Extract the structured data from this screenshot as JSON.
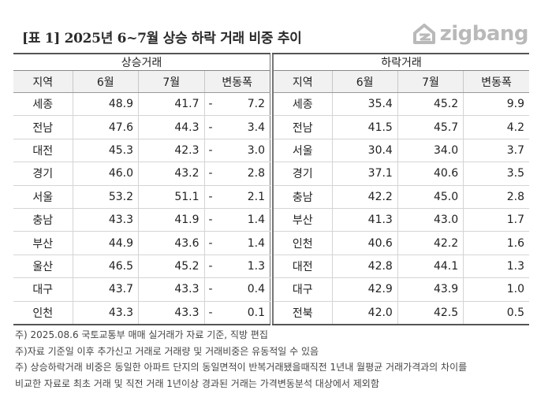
{
  "title": "[표 1] 2025년 6~7월 상승 하락 거래 비중 추이",
  "logo": {
    "text": "zigbang",
    "icon": "zigbang-house-icon",
    "color": "#b9b9b9"
  },
  "columns": {
    "region": "지역",
    "june": "6월",
    "july": "7월",
    "change": "변동폭"
  },
  "rising": {
    "label": "상승거래",
    "rows": [
      {
        "region": "세종",
        "june": "48.9",
        "july": "41.7",
        "sign": "-",
        "change": "7.2"
      },
      {
        "region": "전남",
        "june": "47.6",
        "july": "44.3",
        "sign": "-",
        "change": "3.4"
      },
      {
        "region": "대전",
        "june": "45.3",
        "july": "42.3",
        "sign": "-",
        "change": "3.0"
      },
      {
        "region": "경기",
        "june": "46.0",
        "july": "43.2",
        "sign": "-",
        "change": "2.8"
      },
      {
        "region": "서울",
        "june": "53.2",
        "july": "51.1",
        "sign": "-",
        "change": "2.1"
      },
      {
        "region": "충남",
        "june": "43.3",
        "july": "41.9",
        "sign": "-",
        "change": "1.4"
      },
      {
        "region": "부산",
        "june": "44.9",
        "july": "43.6",
        "sign": "-",
        "change": "1.4"
      },
      {
        "region": "울산",
        "june": "46.5",
        "july": "45.2",
        "sign": "-",
        "change": "1.3"
      },
      {
        "region": "대구",
        "june": "43.7",
        "july": "43.3",
        "sign": "-",
        "change": "0.4"
      },
      {
        "region": "인천",
        "june": "43.3",
        "july": "43.3",
        "sign": "-",
        "change": "0.1"
      }
    ]
  },
  "falling": {
    "label": "하락거래",
    "rows": [
      {
        "region": "세종",
        "june": "35.4",
        "july": "45.2",
        "sign": "",
        "change": "9.9"
      },
      {
        "region": "전남",
        "june": "41.5",
        "july": "45.7",
        "sign": "",
        "change": "4.2"
      },
      {
        "region": "서울",
        "june": "30.4",
        "july": "34.0",
        "sign": "",
        "change": "3.7"
      },
      {
        "region": "경기",
        "june": "37.1",
        "july": "40.6",
        "sign": "",
        "change": "3.5"
      },
      {
        "region": "충남",
        "june": "42.2",
        "july": "45.0",
        "sign": "",
        "change": "2.8"
      },
      {
        "region": "부산",
        "june": "41.3",
        "july": "43.0",
        "sign": "",
        "change": "1.7"
      },
      {
        "region": "인천",
        "june": "40.6",
        "july": "42.2",
        "sign": "",
        "change": "1.6"
      },
      {
        "region": "대전",
        "june": "42.8",
        "july": "44.1",
        "sign": "",
        "change": "1.3"
      },
      {
        "region": "대구",
        "june": "42.9",
        "july": "43.9",
        "sign": "",
        "change": "1.0"
      },
      {
        "region": "전북",
        "june": "42.0",
        "july": "42.5",
        "sign": "",
        "change": "0.5"
      }
    ]
  },
  "notes": [
    "주) 2025.08.6 국토교통부 매매 실거래가 자료 기준, 직방 편집",
    "주)자료 기준일 이후 추가신고 거래로 거래량 및 거래비중은 유동적일 수 있음",
    "주) 상승하락거래 비중은 동일한 아파트 단지의 동일면적이 반복거래됐을때직전 1년내 월평균 거래가격과의 차이를",
    "비교한 자료로 최초 거래 및 직전 거래 1년이상 경과된 거래는 가격변동분석 대상에서 제외함"
  ]
}
